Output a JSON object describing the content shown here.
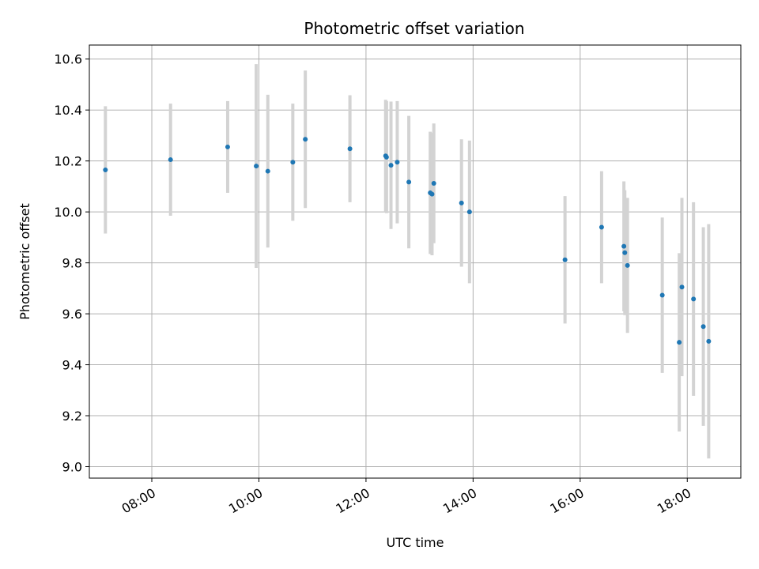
{
  "chart_data": {
    "type": "scatter",
    "title": "Photometric offset variation",
    "xlabel": "UTC time",
    "ylabel": "Photometric offset",
    "x_type": "time",
    "xlim": [
      "06:50",
      "19:00"
    ],
    "ylim": [
      8.955,
      10.655
    ],
    "x_ticks": [
      "08:00",
      "10:00",
      "12:00",
      "14:00",
      "16:00",
      "18:00"
    ],
    "y_ticks": [
      9.0,
      9.2,
      9.4,
      9.6,
      9.8,
      10.0,
      10.2,
      10.4,
      10.6
    ],
    "y_tick_labels": [
      "9.0",
      "9.2",
      "9.4",
      "9.6",
      "9.8",
      "10.0",
      "10.2",
      "10.4",
      "10.6"
    ],
    "grid": true,
    "colors": {
      "point": "#1f77b4",
      "errorbar": "#d3d3d3",
      "grid": "#b0b0b0"
    },
    "series": [
      {
        "points": [
          {
            "x": "07:08",
            "y": 10.165,
            "err": 0.25
          },
          {
            "x": "08:21",
            "y": 10.205,
            "err": 0.22
          },
          {
            "x": "09:25",
            "y": 10.255,
            "err": 0.18
          },
          {
            "x": "09:57",
            "y": 10.18,
            "err": 0.4
          },
          {
            "x": "10:10",
            "y": 10.16,
            "err": 0.3
          },
          {
            "x": "10:38",
            "y": 10.195,
            "err": 0.23
          },
          {
            "x": "10:52",
            "y": 10.285,
            "err": 0.27
          },
          {
            "x": "11:42",
            "y": 10.248,
            "err": 0.21
          },
          {
            "x": "12:22",
            "y": 10.22,
            "err": 0.22
          },
          {
            "x": "12:23",
            "y": 10.215,
            "err": 0.22
          },
          {
            "x": "12:28",
            "y": 10.183,
            "err": 0.25
          },
          {
            "x": "12:35",
            "y": 10.195,
            "err": 0.24
          },
          {
            "x": "12:48",
            "y": 10.117,
            "err": 0.26
          },
          {
            "x": "13:12",
            "y": 10.075,
            "err": 0.24
          },
          {
            "x": "13:14",
            "y": 10.07,
            "err": 0.24
          },
          {
            "x": "13:16",
            "y": 10.112,
            "err": 0.235
          },
          {
            "x": "13:47",
            "y": 10.035,
            "err": 0.25
          },
          {
            "x": "13:56",
            "y": 10.0,
            "err": 0.28
          },
          {
            "x": "15:43",
            "y": 9.812,
            "err": 0.25
          },
          {
            "x": "16:24",
            "y": 9.94,
            "err": 0.22
          },
          {
            "x": "16:49",
            "y": 9.865,
            "err": 0.255
          },
          {
            "x": "16:50",
            "y": 9.84,
            "err": 0.245
          },
          {
            "x": "16:53",
            "y": 9.79,
            "err": 0.265
          },
          {
            "x": "17:32",
            "y": 9.673,
            "err": 0.305
          },
          {
            "x": "17:51",
            "y": 9.488,
            "err": 0.35
          },
          {
            "x": "17:54",
            "y": 9.705,
            "err": 0.35
          },
          {
            "x": "18:07",
            "y": 9.658,
            "err": 0.38
          },
          {
            "x": "18:18",
            "y": 9.55,
            "err": 0.39
          },
          {
            "x": "18:24",
            "y": 9.492,
            "err": 0.46
          }
        ]
      }
    ]
  }
}
